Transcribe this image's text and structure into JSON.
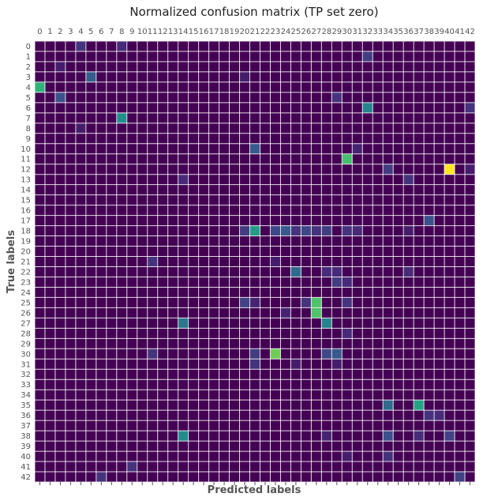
{
  "chart_data": {
    "type": "heatmap",
    "title": "Normalized confusion matrix (TP set zero)",
    "xlabel": "Predicted labels",
    "ylabel": "True labels",
    "x_tick_labels": [
      "0",
      "1",
      "2",
      "3",
      "4",
      "5",
      "6",
      "7",
      "8",
      "9",
      "10",
      "11",
      "12",
      "13",
      "14",
      "15",
      "16",
      "17",
      "18",
      "19",
      "20",
      "21",
      "22",
      "23",
      "24",
      "25",
      "26",
      "27",
      "28",
      "29",
      "30",
      "31",
      "32",
      "33",
      "34",
      "35",
      "36",
      "37",
      "38",
      "39",
      "40",
      "41",
      "42"
    ],
    "y_tick_labels": [
      "0",
      "1",
      "2",
      "3",
      "4",
      "5",
      "6",
      "7",
      "8",
      "9",
      "10",
      "11",
      "12",
      "13",
      "14",
      "15",
      "16",
      "17",
      "18",
      "19",
      "20",
      "21",
      "22",
      "23",
      "24",
      "25",
      "26",
      "27",
      "28",
      "29",
      "30",
      "31",
      "32",
      "33",
      "34",
      "35",
      "36",
      "37",
      "38",
      "39",
      "40",
      "41",
      "42"
    ],
    "x_axis_position": "top",
    "grid": true,
    "colormap": "viridis",
    "value_range": [
      0,
      1
    ],
    "background_value": 0,
    "cells": [
      {
        "row": 0,
        "col": 4,
        "value": 0.15
      },
      {
        "row": 0,
        "col": 8,
        "value": 0.12
      },
      {
        "row": 1,
        "col": 32,
        "value": 0.18
      },
      {
        "row": 2,
        "col": 2,
        "value": 0.08
      },
      {
        "row": 3,
        "col": 5,
        "value": 0.3
      },
      {
        "row": 3,
        "col": 20,
        "value": 0.08
      },
      {
        "row": 4,
        "col": 0,
        "value": 0.65
      },
      {
        "row": 5,
        "col": 2,
        "value": 0.25
      },
      {
        "row": 5,
        "col": 29,
        "value": 0.15
      },
      {
        "row": 6,
        "col": 32,
        "value": 0.45
      },
      {
        "row": 6,
        "col": 42,
        "value": 0.15
      },
      {
        "row": 7,
        "col": 8,
        "value": 0.5
      },
      {
        "row": 8,
        "col": 4,
        "value": 0.08
      },
      {
        "row": 10,
        "col": 21,
        "value": 0.28
      },
      {
        "row": 10,
        "col": 31,
        "value": 0.1
      },
      {
        "row": 11,
        "col": 30,
        "value": 0.7
      },
      {
        "row": 12,
        "col": 34,
        "value": 0.18
      },
      {
        "row": 12,
        "col": 40,
        "value": 1.0
      },
      {
        "row": 12,
        "col": 42,
        "value": 0.08
      },
      {
        "row": 13,
        "col": 14,
        "value": 0.12
      },
      {
        "row": 13,
        "col": 36,
        "value": 0.15
      },
      {
        "row": 17,
        "col": 38,
        "value": 0.25
      },
      {
        "row": 18,
        "col": 20,
        "value": 0.18
      },
      {
        "row": 18,
        "col": 21,
        "value": 0.55
      },
      {
        "row": 18,
        "col": 23,
        "value": 0.22
      },
      {
        "row": 18,
        "col": 24,
        "value": 0.28
      },
      {
        "row": 18,
        "col": 25,
        "value": 0.15
      },
      {
        "row": 18,
        "col": 26,
        "value": 0.22
      },
      {
        "row": 18,
        "col": 27,
        "value": 0.15
      },
      {
        "row": 18,
        "col": 28,
        "value": 0.18
      },
      {
        "row": 18,
        "col": 30,
        "value": 0.15
      },
      {
        "row": 18,
        "col": 31,
        "value": 0.12
      },
      {
        "row": 18,
        "col": 36,
        "value": 0.08
      },
      {
        "row": 21,
        "col": 11,
        "value": 0.15
      },
      {
        "row": 21,
        "col": 23,
        "value": 0.08
      },
      {
        "row": 22,
        "col": 25,
        "value": 0.35
      },
      {
        "row": 22,
        "col": 28,
        "value": 0.12
      },
      {
        "row": 22,
        "col": 29,
        "value": 0.12
      },
      {
        "row": 22,
        "col": 36,
        "value": 0.12
      },
      {
        "row": 23,
        "col": 29,
        "value": 0.18
      },
      {
        "row": 23,
        "col": 30,
        "value": 0.12
      },
      {
        "row": 25,
        "col": 20,
        "value": 0.2
      },
      {
        "row": 25,
        "col": 21,
        "value": 0.1
      },
      {
        "row": 25,
        "col": 26,
        "value": 0.15
      },
      {
        "row": 25,
        "col": 27,
        "value": 0.72
      },
      {
        "row": 25,
        "col": 30,
        "value": 0.15
      },
      {
        "row": 26,
        "col": 27,
        "value": 0.72
      },
      {
        "row": 26,
        "col": 24,
        "value": 0.1
      },
      {
        "row": 27,
        "col": 14,
        "value": 0.4
      },
      {
        "row": 27,
        "col": 28,
        "value": 0.45
      },
      {
        "row": 28,
        "col": 30,
        "value": 0.12
      },
      {
        "row": 30,
        "col": 11,
        "value": 0.15
      },
      {
        "row": 30,
        "col": 21,
        "value": 0.18
      },
      {
        "row": 30,
        "col": 23,
        "value": 0.78
      },
      {
        "row": 30,
        "col": 28,
        "value": 0.22
      },
      {
        "row": 30,
        "col": 29,
        "value": 0.28
      },
      {
        "row": 31,
        "col": 21,
        "value": 0.15
      },
      {
        "row": 31,
        "col": 25,
        "value": 0.08
      },
      {
        "row": 31,
        "col": 29,
        "value": 0.08
      },
      {
        "row": 35,
        "col": 34,
        "value": 0.35
      },
      {
        "row": 35,
        "col": 37,
        "value": 0.58
      },
      {
        "row": 36,
        "col": 38,
        "value": 0.15
      },
      {
        "row": 36,
        "col": 39,
        "value": 0.12
      },
      {
        "row": 38,
        "col": 14,
        "value": 0.48
      },
      {
        "row": 38,
        "col": 28,
        "value": 0.1
      },
      {
        "row": 38,
        "col": 34,
        "value": 0.25
      },
      {
        "row": 38,
        "col": 37,
        "value": 0.12
      },
      {
        "row": 38,
        "col": 40,
        "value": 0.2
      },
      {
        "row": 40,
        "col": 30,
        "value": 0.08
      },
      {
        "row": 40,
        "col": 34,
        "value": 0.15
      },
      {
        "row": 41,
        "col": 9,
        "value": 0.15
      },
      {
        "row": 42,
        "col": 6,
        "value": 0.15
      },
      {
        "row": 42,
        "col": 41,
        "value": 0.2
      }
    ]
  }
}
